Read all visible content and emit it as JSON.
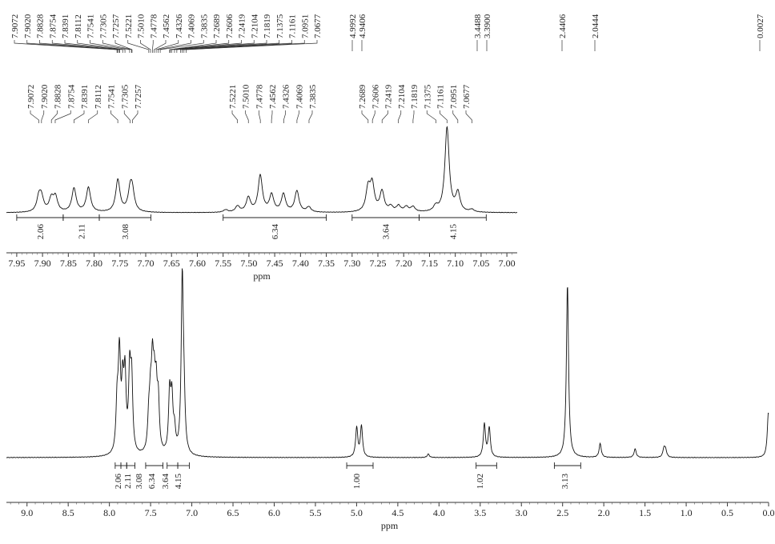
{
  "chart_data": [
    {
      "type": "line",
      "chart_name": "full-spectrum",
      "xlabel": "ppm",
      "xlim": [
        9.25,
        0.0
      ],
      "reversed_x": true,
      "x_ticks": [
        "9.0",
        "8.5",
        "8.0",
        "7.5",
        "7.0",
        "6.5",
        "6.0",
        "5.5",
        "5.0",
        "4.5",
        "4.0",
        "3.5",
        "3.0",
        "2.5",
        "2.0",
        "1.5",
        "1.0",
        "0.5",
        "0.0"
      ],
      "peak_labels": [
        "7.9072",
        "7.9020",
        "7.8828",
        "7.8754",
        "7.8391",
        "7.8112",
        "7.7541",
        "7.7305",
        "7.7257",
        "7.5221",
        "7.5010",
        "7.4778",
        "7.4562",
        "7.4326",
        "7.4069",
        "7.3835",
        "7.2689",
        "7.2606",
        "7.2419",
        "7.2104",
        "7.1819",
        "7.1375",
        "7.1161",
        "7.0951",
        "7.0677",
        "4.9992",
        "4.9406",
        "3.4488",
        "3.3900",
        "2.4406",
        "2.0444",
        "0.0027"
      ],
      "integrals": [
        {
          "label": "2.06",
          "from": 7.93,
          "to": 7.86
        },
        {
          "label": "2.11",
          "from": 7.86,
          "to": 7.79
        },
        {
          "label": "3.08",
          "from": 7.79,
          "to": 7.69
        },
        {
          "label": "6.34",
          "from": 7.56,
          "to": 7.35
        },
        {
          "label": "3.64",
          "from": 7.3,
          "to": 7.17
        },
        {
          "label": "4.15",
          "from": 7.17,
          "to": 7.03
        },
        {
          "label": "1.00",
          "from": 5.12,
          "to": 4.8
        },
        {
          "label": "1.02",
          "from": 3.55,
          "to": 3.3
        },
        {
          "label": "3.13",
          "from": 2.6,
          "to": 2.28
        }
      ],
      "peaks": [
        {
          "ppm": 7.907,
          "h": 0.27
        },
        {
          "ppm": 7.882,
          "h": 0.3
        },
        {
          "ppm": 7.875,
          "h": 0.28
        },
        {
          "ppm": 7.839,
          "h": 0.35
        },
        {
          "ppm": 7.811,
          "h": 0.42
        },
        {
          "ppm": 7.754,
          "h": 0.44
        },
        {
          "ppm": 7.73,
          "h": 0.4
        },
        {
          "ppm": 7.522,
          "h": 0.18
        },
        {
          "ppm": 7.501,
          "h": 0.25
        },
        {
          "ppm": 7.478,
          "h": 0.43
        },
        {
          "ppm": 7.456,
          "h": 0.3
        },
        {
          "ppm": 7.433,
          "h": 0.31
        },
        {
          "ppm": 7.407,
          "h": 0.28
        },
        {
          "ppm": 7.269,
          "h": 0.34
        },
        {
          "ppm": 7.242,
          "h": 0.3
        },
        {
          "ppm": 7.21,
          "h": 0.12
        },
        {
          "ppm": 7.116,
          "h": 1.0
        },
        {
          "ppm": 7.095,
          "h": 0.24
        },
        {
          "ppm": 4.999,
          "h": 0.17
        },
        {
          "ppm": 4.941,
          "h": 0.18
        },
        {
          "ppm": 4.13,
          "h": 0.02
        },
        {
          "ppm": 3.449,
          "h": 0.19
        },
        {
          "ppm": 3.39,
          "h": 0.17
        },
        {
          "ppm": 2.441,
          "h": 1.0
        },
        {
          "ppm": 2.044,
          "h": 0.08
        },
        {
          "ppm": 1.62,
          "h": 0.05
        },
        {
          "ppm": 1.27,
          "h": 0.05
        },
        {
          "ppm": 1.25,
          "h": 0.04
        },
        {
          "ppm": 0.003,
          "h": 0.26
        }
      ]
    },
    {
      "type": "line",
      "chart_name": "aromatic-expansion",
      "xlabel": "ppm",
      "xlim": [
        7.97,
        6.98
      ],
      "reversed_x": true,
      "x_ticks": [
        "7.95",
        "7.90",
        "7.85",
        "7.80",
        "7.75",
        "7.70",
        "7.65",
        "7.60",
        "7.55",
        "7.50",
        "7.45",
        "7.40",
        "7.35",
        "7.30",
        "7.25",
        "7.20",
        "7.15",
        "7.10",
        "7.05",
        "7.00"
      ],
      "peak_groups": [
        [
          "7.9072",
          "7.9020",
          "7.8828",
          "7.8754",
          "7.8391",
          "7.8112",
          "7.7541",
          "7.7305",
          "7.7257"
        ],
        [
          "7.5221",
          "7.5010",
          "7.4778",
          "7.4562",
          "7.4326",
          "7.4069",
          "7.3835"
        ],
        [
          "7.2689",
          "7.2606",
          "7.2419",
          "7.2104",
          "7.1819",
          "7.1375",
          "7.1161",
          "7.0951",
          "7.0677"
        ]
      ],
      "integrals": [
        {
          "label": "2.06",
          "from": 7.95,
          "to": 7.86
        },
        {
          "label": "2.11",
          "from": 7.86,
          "to": 7.79
        },
        {
          "label": "3.08",
          "from": 7.79,
          "to": 7.69
        },
        {
          "label": "6.34",
          "from": 7.55,
          "to": 7.35
        },
        {
          "label": "3.64",
          "from": 7.3,
          "to": 7.17
        },
        {
          "label": "4.15",
          "from": 7.17,
          "to": 7.04
        }
      ],
      "peaks": [
        {
          "ppm": 7.907,
          "h": 0.17
        },
        {
          "ppm": 7.902,
          "h": 0.15
        },
        {
          "ppm": 7.883,
          "h": 0.15
        },
        {
          "ppm": 7.875,
          "h": 0.17
        },
        {
          "ppm": 7.839,
          "h": 0.28
        },
        {
          "ppm": 7.811,
          "h": 0.29
        },
        {
          "ppm": 7.754,
          "h": 0.38
        },
        {
          "ppm": 7.73,
          "h": 0.23
        },
        {
          "ppm": 7.726,
          "h": 0.21
        },
        {
          "ppm": 7.545,
          "h": 0.03
        },
        {
          "ppm": 7.522,
          "h": 0.07
        },
        {
          "ppm": 7.501,
          "h": 0.17
        },
        {
          "ppm": 7.478,
          "h": 0.43
        },
        {
          "ppm": 7.456,
          "h": 0.2
        },
        {
          "ppm": 7.433,
          "h": 0.21
        },
        {
          "ppm": 7.407,
          "h": 0.25
        },
        {
          "ppm": 7.384,
          "h": 0.06
        },
        {
          "ppm": 7.269,
          "h": 0.27
        },
        {
          "ppm": 7.261,
          "h": 0.31
        },
        {
          "ppm": 7.242,
          "h": 0.24
        },
        {
          "ppm": 7.225,
          "h": 0.06
        },
        {
          "ppm": 7.21,
          "h": 0.07
        },
        {
          "ppm": 7.195,
          "h": 0.06
        },
        {
          "ppm": 7.182,
          "h": 0.06
        },
        {
          "ppm": 7.138,
          "h": 0.06
        },
        {
          "ppm": 7.116,
          "h": 1.0
        },
        {
          "ppm": 7.095,
          "h": 0.22
        },
        {
          "ppm": 7.068,
          "h": 0.03
        }
      ]
    }
  ]
}
